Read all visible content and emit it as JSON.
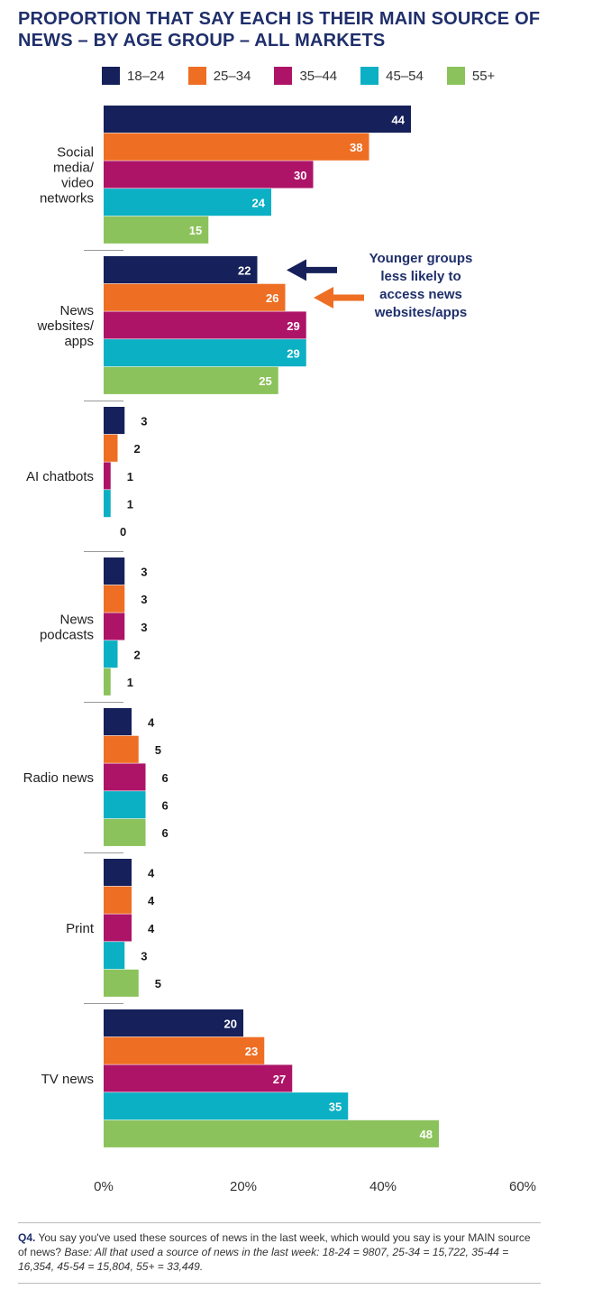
{
  "title_line1": "PROPORTION THAT SAY EACH IS THEIR MAIN SOURCE OF",
  "title_line2": "NEWS – BY AGE GROUP – ALL MARKETS",
  "annotation_lines": [
    "Younger groups",
    "less likely to",
    "access news",
    "websites/apps"
  ],
  "footnote": {
    "q_label": "Q4.",
    "question": " You say you've used these sources of news in the last week, which would you say is your MAIN source of news? ",
    "base": "Base: All that used a source of news in the last week: 18-24 = 9807, 25-34 = 15,722, 35-44 = 16,354, 45-54 = 15,804, 55+ = 33,449."
  },
  "chart_data": {
    "type": "bar",
    "orientation": "horizontal",
    "title": "PROPORTION THAT SAY EACH IS THEIR MAIN SOURCE OF NEWS – BY AGE GROUP – ALL MARKETS",
    "categories": [
      [
        "Social",
        "media/",
        "video",
        "networks"
      ],
      [
        "News",
        "websites/",
        "apps"
      ],
      [
        "AI chatbots"
      ],
      [
        "News",
        "podcasts"
      ],
      [
        "Radio news"
      ],
      [
        "Print"
      ],
      [
        "TV news"
      ]
    ],
    "series": [
      {
        "name": "18–24",
        "color": "#16205a",
        "values": [
          44,
          22,
          3,
          3,
          4,
          4,
          20
        ]
      },
      {
        "name": "25–34",
        "color": "#ee6e23",
        "values": [
          38,
          26,
          2,
          3,
          5,
          4,
          23
        ]
      },
      {
        "name": "35–44",
        "color": "#ad1468",
        "values": [
          30,
          29,
          1,
          3,
          6,
          4,
          27
        ]
      },
      {
        "name": "45–54",
        "color": "#0cb0c4",
        "values": [
          24,
          29,
          1,
          2,
          6,
          3,
          35
        ]
      },
      {
        "name": "55+",
        "color": "#8cc25b",
        "values": [
          15,
          25,
          0,
          1,
          6,
          5,
          48
        ]
      }
    ],
    "xlim": [
      0,
      60
    ],
    "xticks": [
      "0%",
      "20%",
      "40%",
      "60%"
    ],
    "legend_position": "top",
    "grid": false,
    "value_labels": true
  }
}
